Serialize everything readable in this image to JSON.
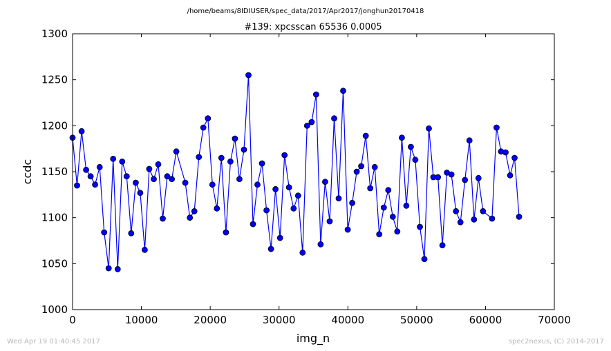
{
  "suptitle": "/home/beams/8IDIUSER/spec_data/2017/Apr2017/jonghun20170418",
  "footer_left": "Wed Apr 19 01:40:45 2017",
  "footer_right": "spec2nexus, (C) 2014-2017",
  "chart_data": {
    "type": "line",
    "title": "#139: xpcsscan 65536 0.0005",
    "xlabel": "img_n",
    "ylabel": "ccdc",
    "xlim": [
      0,
      70000
    ],
    "ylim": [
      1000,
      1300
    ],
    "xticks": [
      0,
      10000,
      20000,
      30000,
      40000,
      50000,
      60000,
      70000
    ],
    "yticks": [
      1000,
      1050,
      1100,
      1150,
      1200,
      1250,
      1300
    ],
    "grid": false,
    "legend": "none",
    "line_color": "#0000ff",
    "marker_color": "#0000ff",
    "series": [
      {
        "x": [
          0,
          655,
          1311,
          1966,
          2621,
          3277,
          3932,
          4588,
          5243,
          5898,
          6554,
          7209,
          7864,
          8520,
          9175,
          9830,
          10486,
          11141,
          11796,
          12452,
          13107,
          13762,
          14418,
          15073,
          15729,
          16384,
          17039,
          17695,
          18350,
          19005,
          19661,
          20316,
          20972,
          21627,
          22282,
          22938,
          23593,
          24248,
          24904,
          25559,
          26214,
          26870,
          27525,
          28180,
          28836,
          29491,
          30147,
          30802,
          31457,
          32113,
          32768,
          33423,
          34079,
          34734,
          35389,
          36045,
          36700,
          37356,
          38011,
          38666,
          39322,
          39977,
          40632,
          41288,
          41943,
          42598,
          43254,
          43909,
          44564,
          45220,
          45875,
          46531,
          47186,
          47841,
          48497,
          49152,
          49807,
          50463,
          51118,
          51773,
          52429,
          53084,
          53740,
          54395,
          55050,
          55706,
          56361,
          57016,
          57672,
          58327,
          58982,
          59638,
          60293,
          60948,
          61604,
          62259,
          62915,
          63570,
          64225,
          64881,
          65536
        ],
        "y": [
          1187,
          1135,
          1194,
          1152,
          1145,
          1136,
          1155,
          1084,
          1045,
          1164,
          1044,
          1161,
          1145,
          1083,
          1138,
          1127,
          1065,
          1153,
          1142,
          1158,
          1099,
          1145,
          1142,
          1172,
          null,
          1138,
          1100,
          1107,
          1166,
          1198,
          1208,
          1136,
          1110,
          1165,
          1084,
          1161,
          1186,
          1142,
          1174,
          1255,
          1093,
          1136,
          1159,
          1108,
          1066,
          1131,
          1078,
          1168,
          1133,
          1110,
          1124,
          1062,
          1200,
          1204,
          1234,
          1071,
          1139,
          1096,
          1208,
          1121,
          1238,
          1087,
          1116,
          1150,
          1156,
          1189,
          1132,
          1155,
          1082,
          1111,
          1130,
          1101,
          1085,
          1187,
          1113,
          1177,
          1163,
          1090,
          1055,
          1197,
          1144,
          1144,
          1070,
          1149,
          1147,
          1107,
          1095,
          1141,
          1184,
          1098,
          1143,
          1107,
          null,
          1099,
          1198,
          1172,
          1171,
          1146,
          1165,
          1101,
          null
        ]
      }
    ]
  }
}
